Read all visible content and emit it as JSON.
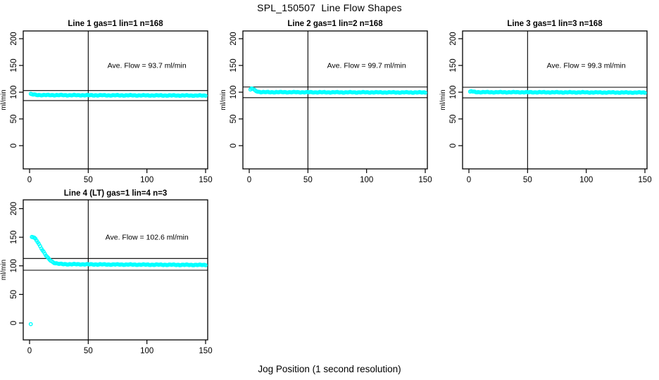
{
  "title": "SPL_150507  Line Flow Shapes",
  "xlabel": "Jog Position (1 second resolution)",
  "chart_data": {
    "type": "scatter",
    "title": "SPL_150507  Line Flow Shapes",
    "xlabel": "Jog Position (1 second resolution)",
    "ylabel": "ml/min",
    "xlim": [
      0,
      150
    ],
    "ylim": [
      0,
      200
    ],
    "x_ticks": [
      0,
      50,
      100,
      150
    ],
    "y_ticks": [
      0,
      50,
      100,
      150,
      200
    ],
    "grid": false,
    "legend": "none",
    "point_color": "#00FFFF",
    "line_color": "#000000",
    "point_style": "open-circle",
    "panels": [
      {
        "title": "Line 1 gas=1 lin=1 n=168",
        "annotation": "Ave. Flow =  93.7  ml/min",
        "ave_flow": 93.7,
        "n": 168,
        "vline_x": 50,
        "hlines": [
          103.1,
          84.3
        ],
        "x_start": 1,
        "x_end": 150,
        "keypoints": [
          [
            1,
            97
          ],
          [
            2,
            96.2
          ],
          [
            3,
            95.5
          ],
          [
            5,
            95
          ],
          [
            10,
            94.6
          ],
          [
            30,
            94.4
          ],
          [
            60,
            94.2
          ],
          [
            100,
            94
          ],
          [
            150,
            93.7
          ]
        ]
      },
      {
        "title": "Line 2 gas=1 lin=2 n=168",
        "annotation": "Ave. Flow =  99.7  ml/min",
        "ave_flow": 99.7,
        "n": 168,
        "vline_x": 50,
        "hlines": [
          109.7,
          89.7
        ],
        "x_start": 1,
        "x_end": 150,
        "keypoints": [
          [
            1,
            105
          ],
          [
            2,
            107
          ],
          [
            3,
            106.3
          ],
          [
            4,
            104.8
          ],
          [
            5,
            103.2
          ],
          [
            6,
            102
          ],
          [
            8,
            100.7
          ],
          [
            10,
            100.3
          ],
          [
            14,
            100
          ],
          [
            30,
            100
          ],
          [
            60,
            99.8
          ],
          [
            100,
            99.7
          ],
          [
            150,
            99.5
          ]
        ]
      },
      {
        "title": "Line 3 gas=1 lin=3 n=168",
        "annotation": "Ave. Flow =  99.3  ml/min",
        "ave_flow": 99.3,
        "n": 168,
        "vline_x": 50,
        "hlines": [
          109.2,
          89.4
        ],
        "x_start": 1,
        "x_end": 150,
        "keypoints": [
          [
            1,
            101
          ],
          [
            2,
            102
          ],
          [
            3,
            101.3
          ],
          [
            4,
            100.7
          ],
          [
            6,
            100.2
          ],
          [
            10,
            100
          ],
          [
            40,
            99.9
          ],
          [
            100,
            99.6
          ],
          [
            150,
            99.3
          ]
        ]
      },
      {
        "title": "Line 4 (LT) gas=1 lin=4 n=3",
        "annotation": "Ave. Flow =  102.6  ml/min",
        "ave_flow": 102.6,
        "n": 3,
        "vline_x": 50,
        "hlines": [
          112.9,
          92.3
        ],
        "x_start": 1,
        "x_end": 150,
        "keypoints": [
          [
            1,
            -2
          ],
          [
            2,
            150.5
          ],
          [
            3,
            150
          ],
          [
            4,
            148.8
          ],
          [
            5,
            147
          ],
          [
            6,
            144.5
          ],
          [
            7,
            141.5
          ],
          [
            8,
            138
          ],
          [
            9,
            134.5
          ],
          [
            10,
            131
          ],
          [
            11,
            127.5
          ],
          [
            12,
            124.2
          ],
          [
            13,
            121
          ],
          [
            14,
            118
          ],
          [
            15,
            115.3
          ],
          [
            16,
            113
          ],
          [
            17,
            111
          ],
          [
            18,
            109.2
          ],
          [
            19,
            107.7
          ],
          [
            20,
            106.4
          ],
          [
            21,
            105.4
          ],
          [
            22,
            104.7
          ],
          [
            24,
            103.8
          ],
          [
            26,
            103.3
          ],
          [
            28,
            103
          ],
          [
            32,
            102.8
          ],
          [
            40,
            102.7
          ],
          [
            60,
            102.4
          ],
          [
            80,
            102.2
          ],
          [
            100,
            102
          ],
          [
            120,
            101.8
          ],
          [
            150,
            101.5
          ]
        ]
      }
    ]
  }
}
